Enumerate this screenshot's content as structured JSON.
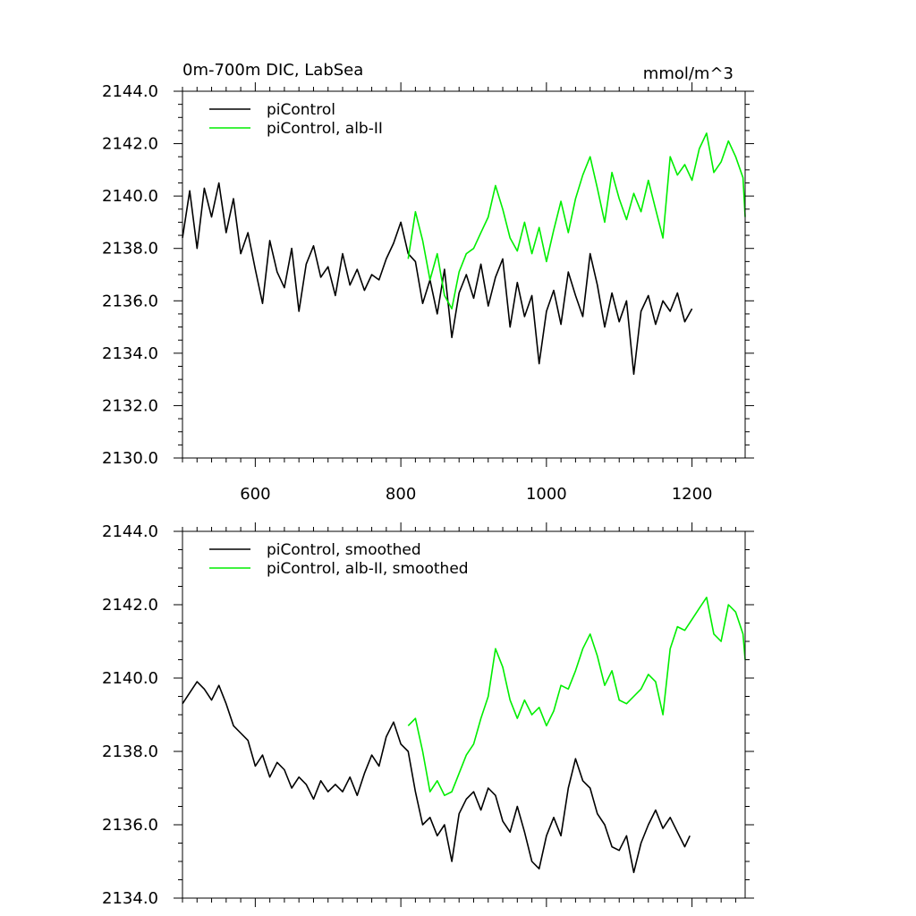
{
  "chart_data": [
    {
      "type": "line",
      "title_left": "0m-700m DIC, LabSea",
      "title_right": "mmol/m^3",
      "xlim": [
        500,
        1273
      ],
      "ylim": [
        2130,
        2144
      ],
      "x_ticks": [
        600,
        800,
        1000,
        1200
      ],
      "y_ticks": [
        2130,
        2132,
        2134,
        2136,
        2138,
        2140,
        2142,
        2144
      ],
      "x_tick_labels": [
        "600",
        "800",
        "1000",
        "1200"
      ],
      "y_tick_labels": [
        "2130.0",
        "2132.0",
        "2134.0",
        "2136.0",
        "2138.0",
        "2140.0",
        "2142.0",
        "2144.0"
      ],
      "legend_position": "top-left",
      "series": [
        {
          "name": "piControl",
          "color": "#000000",
          "x": [
            500,
            510,
            520,
            530,
            540,
            550,
            560,
            570,
            580,
            590,
            600,
            610,
            620,
            630,
            640,
            650,
            660,
            670,
            680,
            690,
            700,
            710,
            720,
            730,
            740,
            750,
            760,
            770,
            780,
            790,
            800,
            810,
            820,
            830,
            840,
            850,
            860,
            870,
            880,
            890,
            900,
            910,
            920,
            930,
            940,
            950,
            960,
            970,
            980,
            990,
            1000,
            1010,
            1020,
            1030,
            1040,
            1050,
            1060,
            1070,
            1080,
            1090,
            1100,
            1110,
            1120,
            1130,
            1140,
            1150,
            1160,
            1170,
            1180,
            1190,
            1200
          ],
          "y": [
            2138.4,
            2140.2,
            2138.0,
            2140.3,
            2139.2,
            2140.5,
            2138.6,
            2139.9,
            2137.8,
            2138.6,
            2137.2,
            2135.9,
            2138.3,
            2137.1,
            2136.5,
            2138.0,
            2135.6,
            2137.4,
            2138.1,
            2136.9,
            2137.3,
            2136.2,
            2137.8,
            2136.6,
            2137.2,
            2136.4,
            2137.0,
            2136.8,
            2137.6,
            2138.2,
            2139.0,
            2137.8,
            2137.5,
            2135.9,
            2136.8,
            2135.5,
            2137.2,
            2134.6,
            2136.3,
            2137.0,
            2136.1,
            2137.4,
            2135.8,
            2136.9,
            2137.6,
            2135.0,
            2136.7,
            2135.4,
            2136.2,
            2133.6,
            2135.6,
            2136.4,
            2135.1,
            2137.1,
            2136.2,
            2135.4,
            2137.8,
            2136.6,
            2135.0,
            2136.3,
            2135.2,
            2136.0,
            2133.2,
            2135.6,
            2136.2,
            2135.1,
            2136.0,
            2135.6,
            2136.3,
            2135.2,
            2135.7
          ]
        },
        {
          "name": "piControl, alb-II",
          "color": "#00ee00",
          "x": [
            810,
            820,
            830,
            840,
            850,
            860,
            870,
            880,
            890,
            900,
            910,
            920,
            930,
            940,
            950,
            960,
            970,
            980,
            990,
            1000,
            1010,
            1020,
            1030,
            1040,
            1050,
            1060,
            1070,
            1080,
            1090,
            1100,
            1110,
            1120,
            1130,
            1140,
            1150,
            1160,
            1170,
            1180,
            1190,
            1200,
            1210,
            1220,
            1230,
            1240,
            1250,
            1260,
            1270,
            1273
          ],
          "y": [
            2137.6,
            2139.4,
            2138.3,
            2136.8,
            2137.8,
            2136.2,
            2135.7,
            2137.1,
            2137.8,
            2138.0,
            2138.6,
            2139.2,
            2140.4,
            2139.5,
            2138.4,
            2137.9,
            2139.0,
            2137.8,
            2138.8,
            2137.5,
            2138.7,
            2139.8,
            2138.6,
            2139.9,
            2140.8,
            2141.5,
            2140.3,
            2139.0,
            2140.9,
            2139.9,
            2139.1,
            2140.1,
            2139.4,
            2140.6,
            2139.5,
            2138.4,
            2141.5,
            2140.8,
            2141.2,
            2140.6,
            2141.8,
            2142.4,
            2140.9,
            2141.3,
            2142.1,
            2141.5,
            2140.7,
            2139.2
          ]
        }
      ]
    },
    {
      "type": "line",
      "xlim": [
        500,
        1273
      ],
      "ylim": [
        2134,
        2144
      ],
      "x_ticks": [
        600,
        800,
        1000,
        1200
      ],
      "y_ticks": [
        2134,
        2136,
        2138,
        2140,
        2142,
        2144
      ],
      "y_tick_labels": [
        "2134.0",
        "2136.0",
        "2138.0",
        "2140.0",
        "2142.0",
        "2144.0"
      ],
      "legend_position": "top-left",
      "series": [
        {
          "name": "piControl, smoothed",
          "color": "#000000",
          "x": [
            500,
            510,
            520,
            530,
            540,
            550,
            560,
            570,
            580,
            590,
            600,
            610,
            620,
            630,
            640,
            650,
            660,
            670,
            680,
            690,
            700,
            710,
            720,
            730,
            740,
            750,
            760,
            770,
            780,
            790,
            800,
            810,
            820,
            830,
            840,
            850,
            860,
            870,
            880,
            890,
            900,
            910,
            920,
            930,
            940,
            950,
            960,
            970,
            980,
            990,
            1000,
            1010,
            1020,
            1030,
            1040,
            1050,
            1060,
            1070,
            1080,
            1090,
            1100,
            1110,
            1120,
            1130,
            1140,
            1150,
            1160,
            1170,
            1180,
            1190,
            1197
          ],
          "y": [
            2139.3,
            2139.6,
            2139.9,
            2139.7,
            2139.4,
            2139.8,
            2139.3,
            2138.7,
            2138.5,
            2138.3,
            2137.6,
            2137.9,
            2137.3,
            2137.7,
            2137.5,
            2137.0,
            2137.3,
            2137.1,
            2136.7,
            2137.2,
            2136.9,
            2137.1,
            2136.9,
            2137.3,
            2136.8,
            2137.4,
            2137.9,
            2137.6,
            2138.4,
            2138.8,
            2138.2,
            2138.0,
            2136.9,
            2136.0,
            2136.2,
            2135.7,
            2136.0,
            2135.0,
            2136.3,
            2136.7,
            2136.9,
            2136.4,
            2137.0,
            2136.8,
            2136.1,
            2135.8,
            2136.5,
            2135.8,
            2135.0,
            2134.8,
            2135.7,
            2136.2,
            2135.7,
            2137.0,
            2137.8,
            2137.2,
            2137.0,
            2136.3,
            2136.0,
            2135.4,
            2135.3,
            2135.7,
            2134.7,
            2135.5,
            2136.0,
            2136.4,
            2135.9,
            2136.2,
            2135.8,
            2135.4,
            2135.7
          ]
        },
        {
          "name": "piControl, alb-II, smoothed",
          "color": "#00ee00",
          "x": [
            810,
            820,
            830,
            840,
            850,
            860,
            870,
            880,
            890,
            900,
            910,
            920,
            930,
            940,
            950,
            960,
            970,
            980,
            990,
            1000,
            1010,
            1020,
            1030,
            1040,
            1050,
            1060,
            1070,
            1080,
            1090,
            1100,
            1110,
            1120,
            1130,
            1140,
            1150,
            1160,
            1170,
            1180,
            1190,
            1200,
            1210,
            1220,
            1230,
            1240,
            1250,
            1260,
            1270,
            1273
          ],
          "y": [
            2138.7,
            2138.9,
            2138.0,
            2136.9,
            2137.2,
            2136.8,
            2136.9,
            2137.4,
            2137.9,
            2138.2,
            2138.9,
            2139.5,
            2140.8,
            2140.3,
            2139.4,
            2138.9,
            2139.4,
            2139.0,
            2139.2,
            2138.7,
            2139.1,
            2139.8,
            2139.7,
            2140.2,
            2140.8,
            2141.2,
            2140.6,
            2139.8,
            2140.2,
            2139.4,
            2139.3,
            2139.5,
            2139.7,
            2140.1,
            2139.9,
            2139.0,
            2140.8,
            2141.4,
            2141.3,
            2141.6,
            2141.9,
            2142.2,
            2141.2,
            2141.0,
            2142.0,
            2141.8,
            2141.2,
            2140.5
          ]
        }
      ]
    }
  ]
}
